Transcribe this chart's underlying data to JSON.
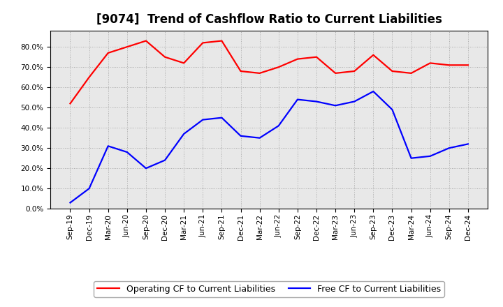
{
  "title": "[9074]  Trend of Cashflow Ratio to Current Liabilities",
  "labels": [
    "Sep-19",
    "Dec-19",
    "Mar-20",
    "Jun-20",
    "Sep-20",
    "Dec-20",
    "Mar-21",
    "Jun-21",
    "Sep-21",
    "Dec-21",
    "Mar-22",
    "Jun-22",
    "Sep-22",
    "Dec-22",
    "Mar-23",
    "Jun-23",
    "Sep-23",
    "Dec-23",
    "Mar-24",
    "Jun-24",
    "Sep-24",
    "Dec-24"
  ],
  "operating_cf": [
    0.52,
    0.65,
    0.77,
    0.8,
    0.83,
    0.75,
    0.72,
    0.82,
    0.83,
    0.68,
    0.67,
    0.7,
    0.74,
    0.75,
    0.67,
    0.68,
    0.76,
    0.68,
    0.67,
    0.72,
    0.71,
    0.71
  ],
  "free_cf": [
    0.03,
    0.1,
    0.31,
    0.28,
    0.2,
    0.24,
    0.37,
    0.44,
    0.45,
    0.36,
    0.35,
    0.41,
    0.54,
    0.53,
    0.51,
    0.53,
    0.58,
    0.49,
    0.25,
    0.26,
    0.3,
    0.32
  ],
  "operating_color": "#FF0000",
  "free_color": "#0000FF",
  "bg_color": "#E8E8E8",
  "ylim": [
    0.0,
    0.88
  ],
  "yticks": [
    0.0,
    0.1,
    0.2,
    0.3,
    0.4,
    0.5,
    0.6,
    0.7,
    0.8
  ],
  "legend_op": "Operating CF to Current Liabilities",
  "legend_free": "Free CF to Current Liabilities",
  "title_fontsize": 12,
  "tick_fontsize": 7.5,
  "legend_fontsize": 9
}
